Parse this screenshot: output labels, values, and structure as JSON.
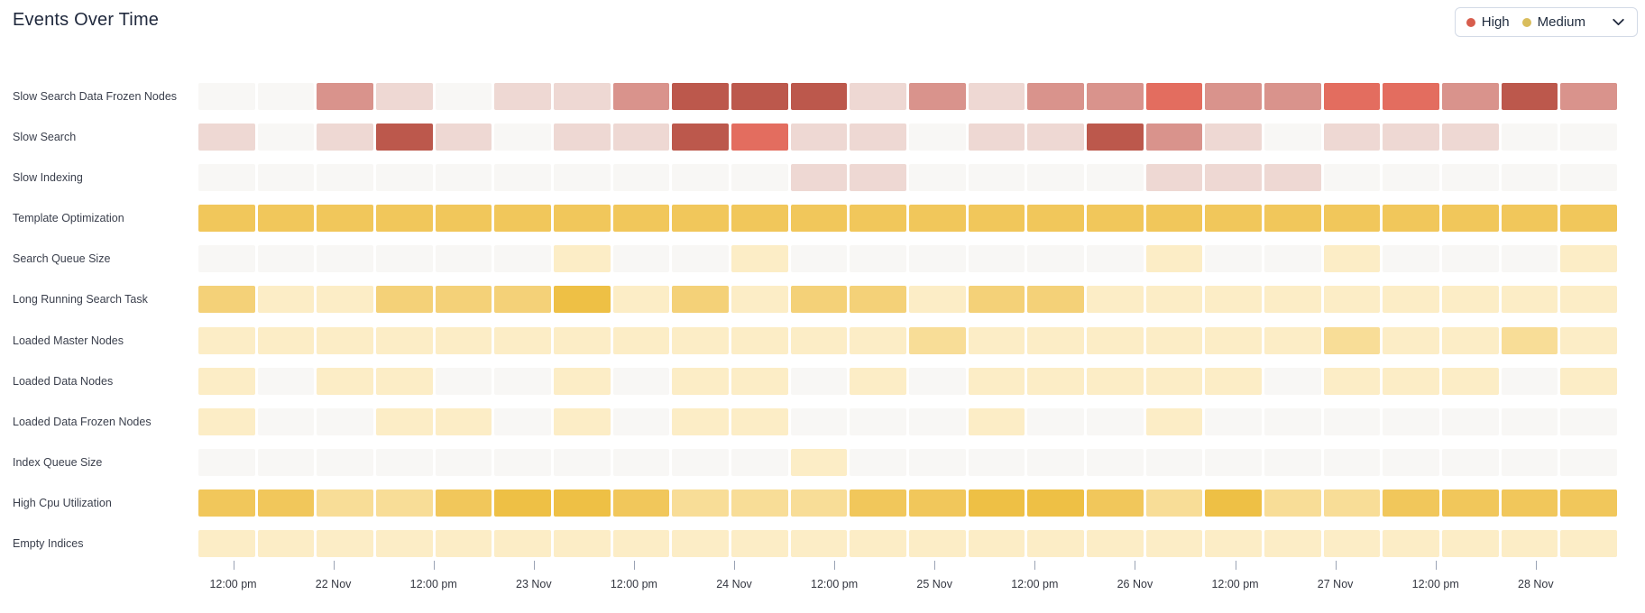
{
  "header": {
    "title": "Events Over Time"
  },
  "legend": {
    "items": [
      {
        "label": "High",
        "color": "#d75d4d"
      },
      {
        "label": "Medium",
        "color": "#d9bd5c"
      }
    ]
  },
  "chart_data": {
    "type": "heatmap",
    "title": "Events Over Time",
    "legend_position": "top-right",
    "x_ticks": [
      "12:00 pm",
      "22 Nov",
      "12:00 pm",
      "23 Nov",
      "12:00 pm",
      "24 Nov",
      "12:00 pm",
      "25 Nov",
      "12:00 pm",
      "26 Nov",
      "12:00 pm",
      "27 Nov",
      "12:00 pm",
      "28 Nov"
    ],
    "cells_per_row": 24,
    "palettes": {
      "red": [
        "#f8f7f5",
        "#eed8d3",
        "#d9938c",
        "#e36d5f",
        "#bc584c"
      ],
      "yellow": [
        "#f8f7f5",
        "#fcedc6",
        "#f8dd97",
        "#f4d178",
        "#f1c75b",
        "#eec045"
      ]
    },
    "rows": [
      {
        "label": "Slow Search Data Frozen Nodes",
        "severity": "High",
        "palette": "red",
        "levels": [
          0,
          0,
          2,
          1,
          0,
          1,
          1,
          2,
          4,
          4,
          4,
          1,
          2,
          1,
          2,
          2,
          3,
          2,
          2,
          3,
          3,
          2,
          4,
          2
        ]
      },
      {
        "label": "Slow Search",
        "severity": "High",
        "palette": "red",
        "levels": [
          1,
          0,
          1,
          4,
          1,
          0,
          1,
          1,
          4,
          3,
          1,
          1,
          0,
          1,
          1,
          4,
          2,
          1,
          0,
          1,
          1,
          1,
          0,
          0
        ]
      },
      {
        "label": "Slow Indexing",
        "severity": "High",
        "palette": "red",
        "levels": [
          0,
          0,
          0,
          0,
          0,
          0,
          0,
          0,
          0,
          0,
          1,
          1,
          0,
          0,
          0,
          0,
          1,
          1,
          1,
          0,
          0,
          0,
          0,
          0
        ]
      },
      {
        "label": "Template Optimization",
        "severity": "Medium",
        "palette": "yellow",
        "levels": [
          4,
          4,
          4,
          4,
          4,
          4,
          4,
          4,
          4,
          4,
          4,
          4,
          4,
          4,
          4,
          4,
          4,
          4,
          4,
          4,
          4,
          4,
          4,
          4
        ]
      },
      {
        "label": "Search Queue Size",
        "severity": "Medium",
        "palette": "yellow",
        "levels": [
          0,
          0,
          0,
          0,
          0,
          0,
          1,
          0,
          0,
          1,
          0,
          0,
          0,
          0,
          0,
          0,
          1,
          0,
          0,
          1,
          0,
          0,
          0,
          1
        ]
      },
      {
        "label": "Long Running Search Task",
        "severity": "Medium",
        "palette": "yellow",
        "levels": [
          3,
          1,
          1,
          3,
          3,
          3,
          5,
          1,
          3,
          1,
          3,
          3,
          1,
          3,
          3,
          1,
          1,
          1,
          1,
          1,
          1,
          1,
          1,
          1
        ]
      },
      {
        "label": "Loaded Master Nodes",
        "severity": "Medium",
        "palette": "yellow",
        "levels": [
          1,
          1,
          1,
          1,
          1,
          1,
          1,
          1,
          1,
          1,
          1,
          1,
          2,
          1,
          1,
          1,
          1,
          1,
          1,
          2,
          1,
          1,
          2,
          1
        ]
      },
      {
        "label": "Loaded Data Nodes",
        "severity": "Medium",
        "palette": "yellow",
        "levels": [
          1,
          0,
          1,
          1,
          0,
          0,
          1,
          0,
          1,
          1,
          0,
          1,
          0,
          1,
          1,
          1,
          1,
          1,
          0,
          1,
          1,
          1,
          0,
          1
        ]
      },
      {
        "label": "Loaded Data Frozen Nodes",
        "severity": "Medium",
        "palette": "yellow",
        "levels": [
          1,
          0,
          0,
          1,
          1,
          0,
          1,
          0,
          1,
          1,
          0,
          0,
          0,
          1,
          0,
          0,
          1,
          0,
          0,
          0,
          0,
          0,
          0,
          0
        ]
      },
      {
        "label": "Index Queue Size",
        "severity": "Medium",
        "palette": "yellow",
        "levels": [
          0,
          0,
          0,
          0,
          0,
          0,
          0,
          0,
          0,
          0,
          1,
          0,
          0,
          0,
          0,
          0,
          0,
          0,
          0,
          0,
          0,
          0,
          0,
          0
        ]
      },
      {
        "label": "High Cpu Utilization",
        "severity": "Medium",
        "palette": "yellow",
        "levels": [
          4,
          4,
          2,
          2,
          4,
          5,
          5,
          4,
          2,
          2,
          2,
          4,
          4,
          5,
          5,
          4,
          2,
          5,
          2,
          2,
          4,
          4,
          4,
          4
        ]
      },
      {
        "label": "Empty Indices",
        "severity": "Medium",
        "palette": "yellow",
        "levels": [
          1,
          1,
          1,
          1,
          1,
          1,
          1,
          1,
          1,
          1,
          1,
          1,
          1,
          1,
          1,
          1,
          1,
          1,
          1,
          1,
          1,
          1,
          1,
          1
        ]
      }
    ]
  }
}
